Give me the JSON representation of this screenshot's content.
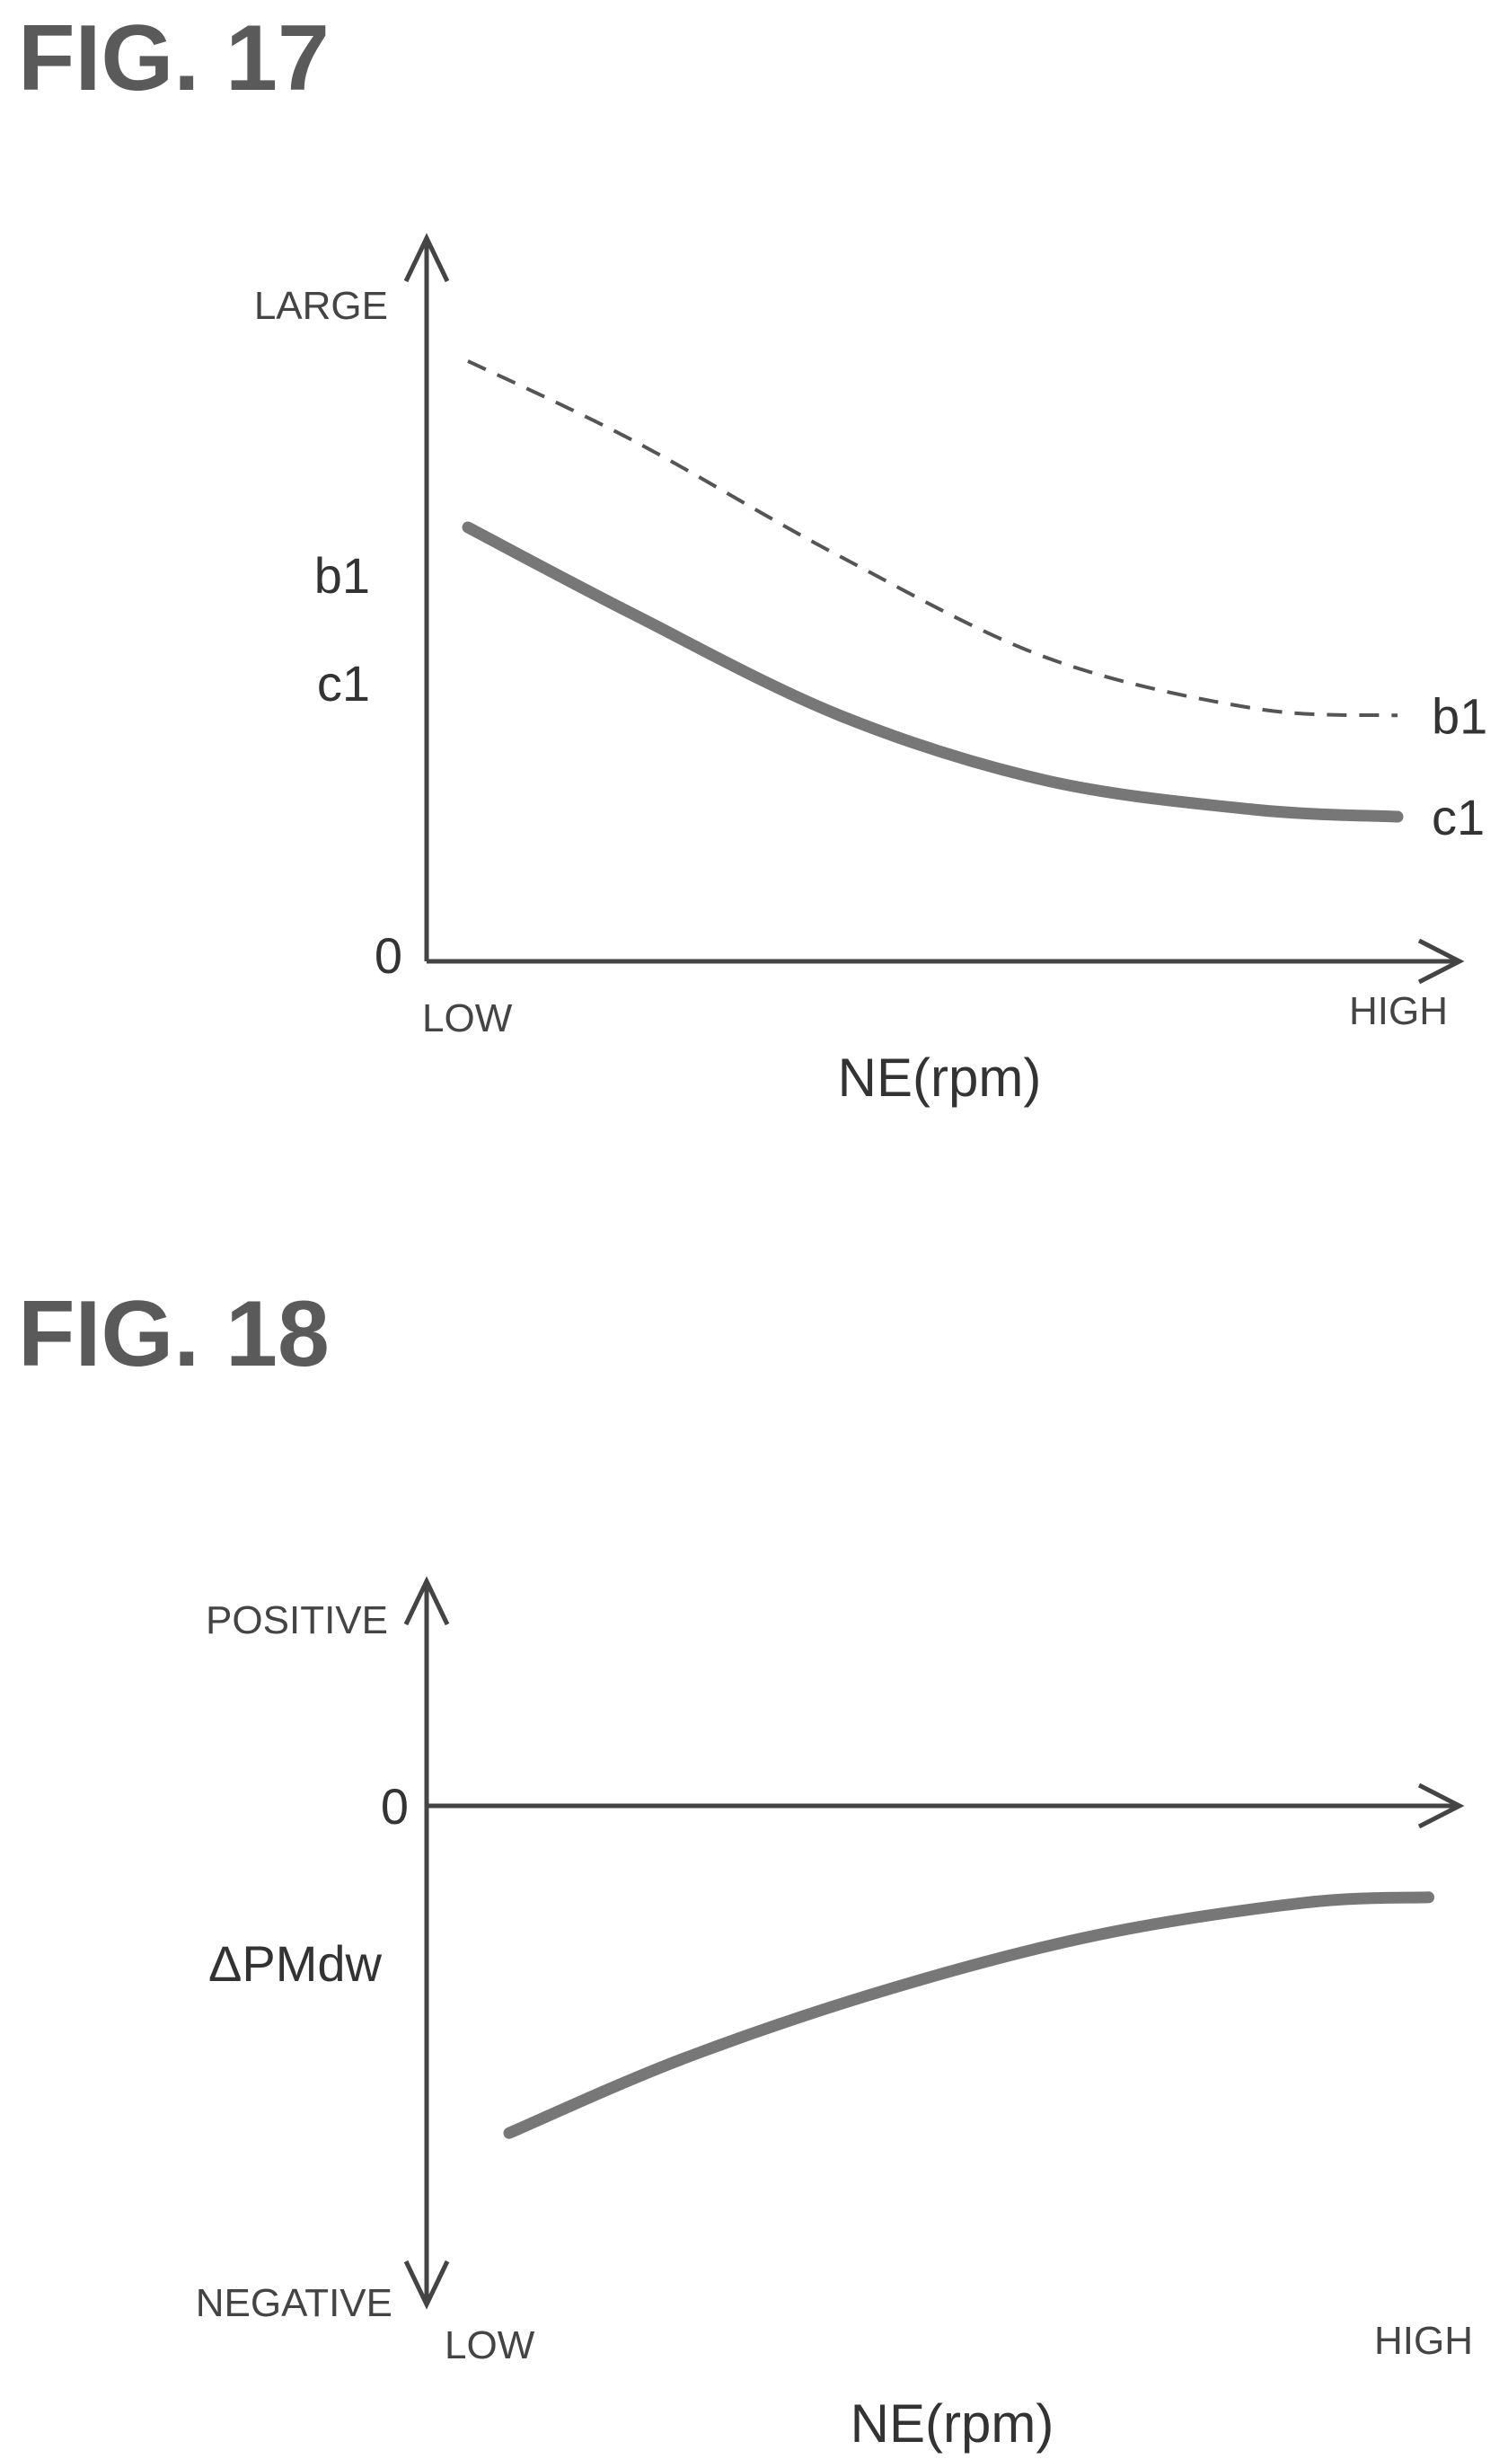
{
  "chart_data": [
    {
      "type": "line",
      "title": "FIG. 17",
      "xlabel": "NE(rpm)",
      "x_low_label": "LOW",
      "x_high_label": "HIGH",
      "y_high_label": "LARGE",
      "y_zero_label": "0",
      "xlim": [
        0,
        1
      ],
      "ylim": [
        0,
        1
      ],
      "series": [
        {
          "name": "b1",
          "style": "dashed",
          "color": "#555555",
          "x": [
            0.04,
            0.2,
            0.4,
            0.6,
            0.8,
            0.94
          ],
          "y": [
            0.83,
            0.72,
            0.56,
            0.42,
            0.35,
            0.34
          ]
        },
        {
          "name": "c1",
          "style": "solid",
          "color": "#777777",
          "x": [
            0.04,
            0.2,
            0.4,
            0.6,
            0.8,
            0.94
          ],
          "y": [
            0.6,
            0.48,
            0.34,
            0.25,
            0.21,
            0.2
          ]
        }
      ]
    },
    {
      "type": "line",
      "title": "FIG. 18",
      "xlabel": "NE(rpm)",
      "x_low_label": "LOW",
      "x_high_label": "HIGH",
      "y_high_label": "POSITIVE",
      "y_low_label": "NEGATIVE",
      "y_zero_label": "0",
      "xlim": [
        0,
        1
      ],
      "ylim": [
        -1,
        0.35
      ],
      "series": [
        {
          "name": "ΔPMdw",
          "style": "solid",
          "color": "#777777",
          "x": [
            0.08,
            0.25,
            0.45,
            0.65,
            0.85,
            0.97
          ],
          "y": [
            -0.68,
            -0.54,
            -0.41,
            -0.31,
            -0.25,
            -0.24
          ]
        }
      ]
    }
  ]
}
